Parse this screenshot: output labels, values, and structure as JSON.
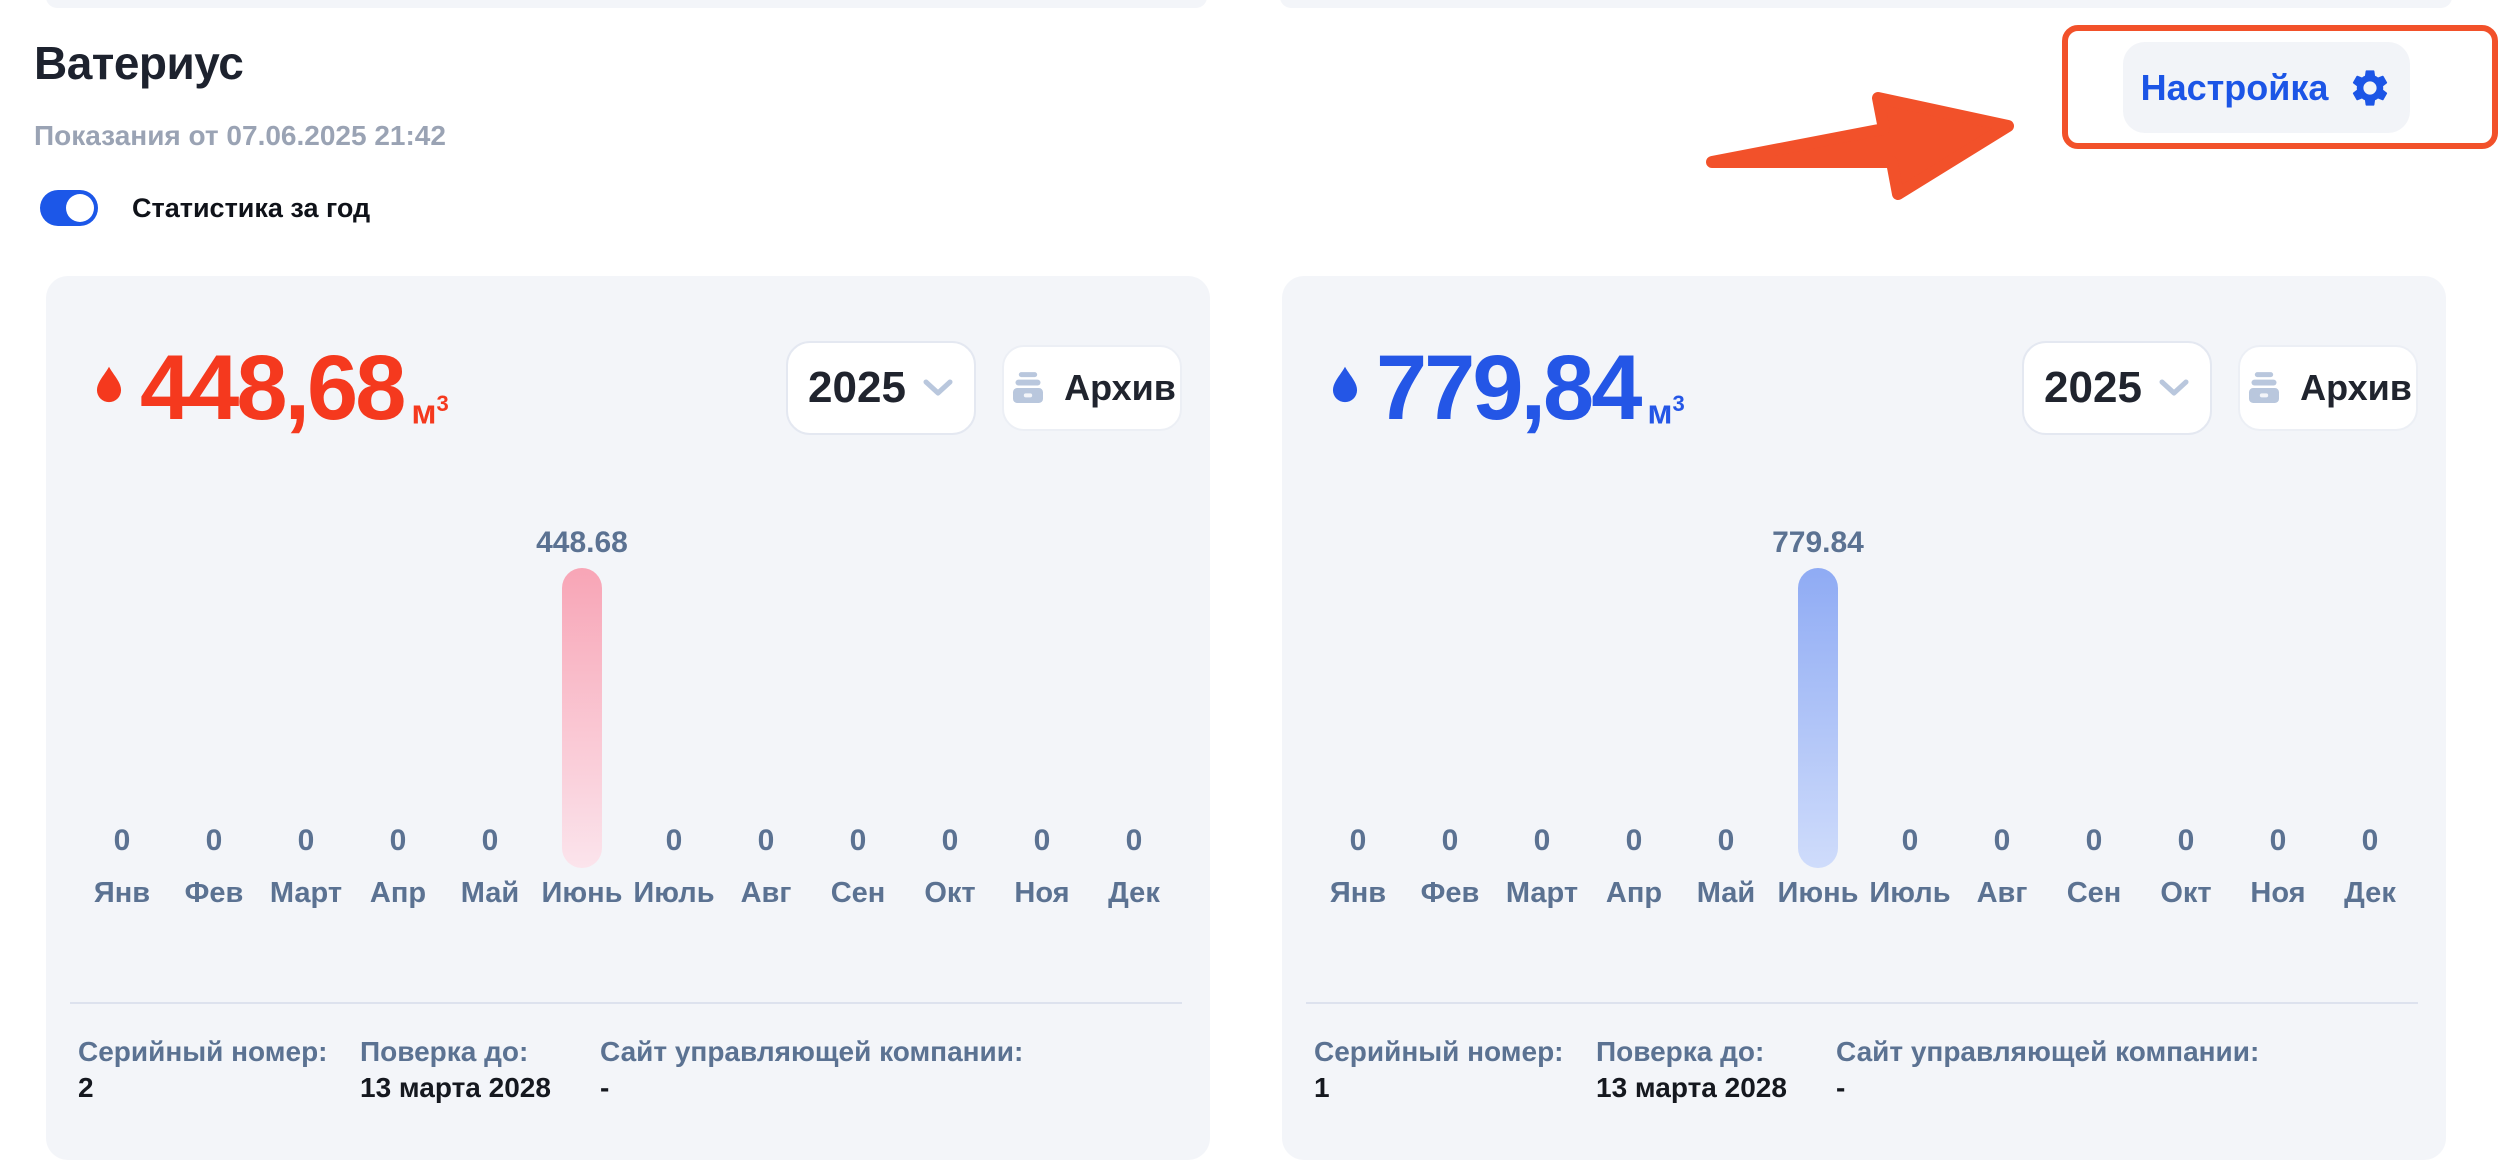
{
  "page": {
    "title": "Ватериус",
    "subtitle": "Показания от 07.06.2025 21:42",
    "toggle": {
      "label": "Статистика за год",
      "state": "on",
      "color": "#1c57e8"
    },
    "settings_button": {
      "label": "Настройка",
      "color": "#1c55e6"
    },
    "annotation": {
      "color": "#f2512a",
      "shape": "box-and-arrow-highlighting-settings"
    }
  },
  "meters": [
    {
      "kind": "hot-water",
      "value": "448,68",
      "unit_base": "м",
      "unit_sup": "3",
      "year": "2025",
      "archive_label": "Архив",
      "colors": {
        "accent": "#f5391e",
        "bar_top": "#f8a5b6",
        "bar_bottom": "#fbe4ec"
      },
      "chart": {
        "columns": [
          {
            "month": "Янв",
            "value": "0"
          },
          {
            "month": "Фев",
            "value": "0"
          },
          {
            "month": "Март",
            "value": "0"
          },
          {
            "month": "Апр",
            "value": "0"
          },
          {
            "month": "Май",
            "value": "0"
          },
          {
            "month": "Июнь",
            "value": "448.68",
            "bar": true
          },
          {
            "month": "Июль",
            "value": "0"
          },
          {
            "month": "Авг",
            "value": "0"
          },
          {
            "month": "Сен",
            "value": "0"
          },
          {
            "month": "Окт",
            "value": "0"
          },
          {
            "month": "Ноя",
            "value": "0"
          },
          {
            "month": "Дек",
            "value": "0"
          }
        ]
      },
      "info": [
        {
          "label": "Серийный номер:",
          "value": "2"
        },
        {
          "label": "Поверка до:",
          "value": "13 марта 2028"
        },
        {
          "label": "Сайт управляющей компании:",
          "value": "-"
        }
      ]
    },
    {
      "kind": "cold-water",
      "value": "779,84",
      "unit_base": "м",
      "unit_sup": "3",
      "year": "2025",
      "archive_label": "Архив",
      "colors": {
        "accent": "#2456e6",
        "bar_top": "#8fabf4",
        "bar_bottom": "#cfdcfb"
      },
      "chart": {
        "columns": [
          {
            "month": "Янв",
            "value": "0"
          },
          {
            "month": "Фев",
            "value": "0"
          },
          {
            "month": "Март",
            "value": "0"
          },
          {
            "month": "Апр",
            "value": "0"
          },
          {
            "month": "Май",
            "value": "0"
          },
          {
            "month": "Июнь",
            "value": "779.84",
            "bar": true
          },
          {
            "month": "Июль",
            "value": "0"
          },
          {
            "month": "Авг",
            "value": "0"
          },
          {
            "month": "Сен",
            "value": "0"
          },
          {
            "month": "Окт",
            "value": "0"
          },
          {
            "month": "Ноя",
            "value": "0"
          },
          {
            "month": "Дек",
            "value": "0"
          }
        ]
      },
      "info": [
        {
          "label": "Серийный номер:",
          "value": "1"
        },
        {
          "label": "Поверка до:",
          "value": "13 марта 2028"
        },
        {
          "label": "Сайт управляющей компании:",
          "value": "-"
        }
      ]
    }
  ],
  "chart_data": [
    {
      "type": "bar",
      "title": "Расход горячей воды за 2025 год (м³)",
      "categories": [
        "Янв",
        "Фев",
        "Март",
        "Апр",
        "Май",
        "Июнь",
        "Июль",
        "Авг",
        "Сен",
        "Окт",
        "Ноя",
        "Дек"
      ],
      "values": [
        0,
        0,
        0,
        0,
        0,
        448.68,
        0,
        0,
        0,
        0,
        0,
        0
      ],
      "xlabel": "",
      "ylabel": "",
      "ylim": [
        0,
        448.68
      ],
      "grid": false,
      "legend": "none",
      "data_labels": true
    },
    {
      "type": "bar",
      "title": "Расход холодной воды за 2025 год (м³)",
      "categories": [
        "Янв",
        "Фев",
        "Март",
        "Апр",
        "Май",
        "Июнь",
        "Июль",
        "Авг",
        "Сен",
        "Окт",
        "Ноя",
        "Дек"
      ],
      "values": [
        0,
        0,
        0,
        0,
        0,
        779.84,
        0,
        0,
        0,
        0,
        0,
        0
      ],
      "xlabel": "",
      "ylabel": "",
      "ylim": [
        0,
        779.84
      ],
      "grid": false,
      "legend": "none",
      "data_labels": true
    }
  ]
}
